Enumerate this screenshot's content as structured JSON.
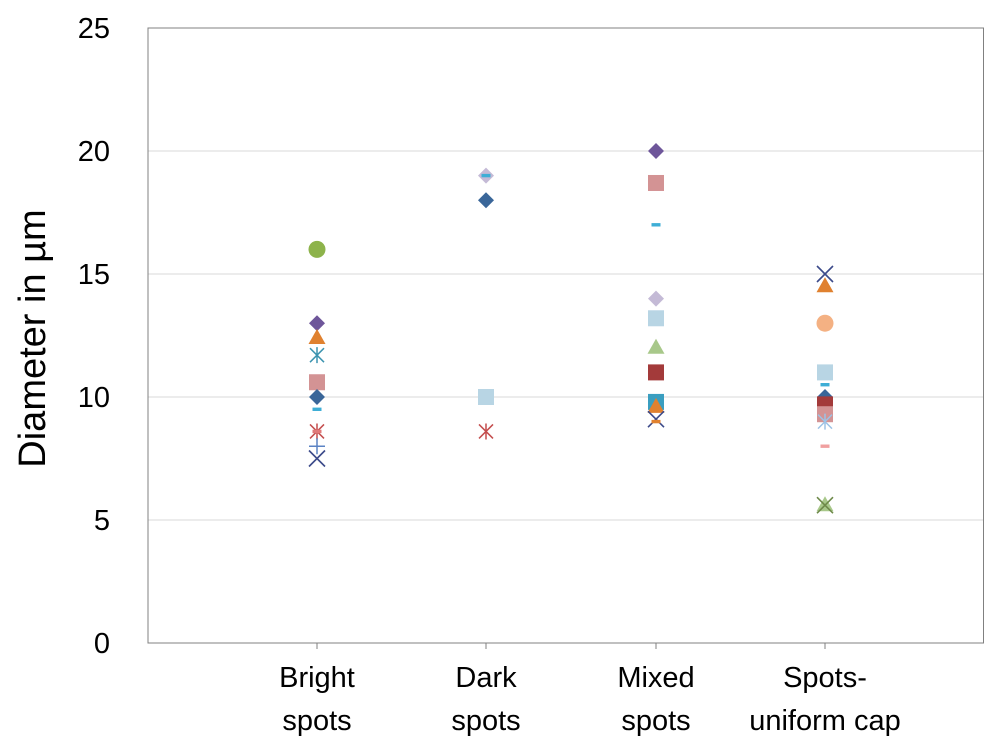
{
  "chart_data": {
    "type": "scatter",
    "title": "",
    "xlabel": "",
    "ylabel": "Diameter in µm",
    "ylim": [
      0,
      25
    ],
    "yticks": [
      "0",
      "5",
      "10",
      "15",
      "20",
      "25"
    ],
    "grid": true,
    "legend": "none",
    "categories": [
      [
        "Bright",
        "spots"
      ],
      [
        "Dark",
        "spots"
      ],
      [
        "Mixed",
        "spots"
      ],
      [
        "Spots-",
        "uniform cap"
      ]
    ],
    "points": [
      {
        "cat": 0,
        "y": 16,
        "marker": "circle",
        "color": "#8db34b"
      },
      {
        "cat": 0,
        "y": 13,
        "marker": "diamond",
        "color": "#6e569a"
      },
      {
        "cat": 0,
        "y": 12.4,
        "marker": "triangle",
        "color": "#e0812f"
      },
      {
        "cat": 0,
        "y": 11.7,
        "marker": "star",
        "color": "#3c94b0"
      },
      {
        "cat": 0,
        "y": 10.6,
        "marker": "square",
        "color": "#d39394"
      },
      {
        "cat": 0,
        "y": 10,
        "marker": "diamond",
        "color": "#3a6699"
      },
      {
        "cat": 0,
        "y": 9.5,
        "marker": "dash",
        "color": "#3eaed6"
      },
      {
        "cat": 0,
        "y": 8.6,
        "marker": "star",
        "color": "#c44d4d"
      },
      {
        "cat": 0,
        "y": 8.6,
        "marker": "dash",
        "color": "#e07a7a"
      },
      {
        "cat": 0,
        "y": 8.0,
        "marker": "plus",
        "color": "#5b83c4"
      },
      {
        "cat": 0,
        "y": 7.5,
        "marker": "x",
        "color": "#3c4a8a"
      },
      {
        "cat": 1,
        "y": 19,
        "marker": "diamond",
        "color": "#c4bad6"
      },
      {
        "cat": 1,
        "y": 19,
        "marker": "dash",
        "color": "#3eaed6"
      },
      {
        "cat": 1,
        "y": 18,
        "marker": "diamond",
        "color": "#3a6699"
      },
      {
        "cat": 1,
        "y": 10,
        "marker": "square",
        "color": "#b8d5e4"
      },
      {
        "cat": 1,
        "y": 8.6,
        "marker": "star",
        "color": "#c44d4d"
      },
      {
        "cat": 2,
        "y": 20,
        "marker": "diamond",
        "color": "#6e569a"
      },
      {
        "cat": 2,
        "y": 18.7,
        "marker": "square",
        "color": "#d39394"
      },
      {
        "cat": 2,
        "y": 17,
        "marker": "dash",
        "color": "#3eaed6"
      },
      {
        "cat": 2,
        "y": 14,
        "marker": "diamond",
        "color": "#c4bad6"
      },
      {
        "cat": 2,
        "y": 13.2,
        "marker": "square",
        "color": "#b8d5e4"
      },
      {
        "cat": 2,
        "y": 12,
        "marker": "triangle",
        "color": "#a8c88a"
      },
      {
        "cat": 2,
        "y": 11,
        "marker": "square",
        "color": "#a33a3a"
      },
      {
        "cat": 2,
        "y": 9.8,
        "marker": "square",
        "color": "#3a9ec0"
      },
      {
        "cat": 2,
        "y": 9.6,
        "marker": "triangle",
        "color": "#e0812f"
      },
      {
        "cat": 2,
        "y": 9.1,
        "marker": "x",
        "color": "#3c4a8a"
      },
      {
        "cat": 2,
        "y": 9.0,
        "marker": "dash",
        "color": "#e0812f"
      },
      {
        "cat": 3,
        "y": 15,
        "marker": "x",
        "color": "#3c4a8a"
      },
      {
        "cat": 3,
        "y": 14.5,
        "marker": "triangle",
        "color": "#e0812f"
      },
      {
        "cat": 3,
        "y": 13,
        "marker": "circle",
        "color": "#f4b183"
      },
      {
        "cat": 3,
        "y": 11,
        "marker": "square",
        "color": "#b8d5e4"
      },
      {
        "cat": 3,
        "y": 10.5,
        "marker": "dash",
        "color": "#3eaed6"
      },
      {
        "cat": 3,
        "y": 10,
        "marker": "diamond",
        "color": "#3a6699"
      },
      {
        "cat": 3,
        "y": 9.7,
        "marker": "square",
        "color": "#a33a3a"
      },
      {
        "cat": 3,
        "y": 9.3,
        "marker": "square",
        "color": "#d39394"
      },
      {
        "cat": 3,
        "y": 9.0,
        "marker": "star",
        "color": "#9dc3e6"
      },
      {
        "cat": 3,
        "y": 8.0,
        "marker": "dash",
        "color": "#f0a0a0"
      },
      {
        "cat": 3,
        "y": 5.6,
        "marker": "triangle",
        "color": "#a8c88a"
      },
      {
        "cat": 3,
        "y": 5.6,
        "marker": "x",
        "color": "#6e8a4a"
      }
    ]
  }
}
